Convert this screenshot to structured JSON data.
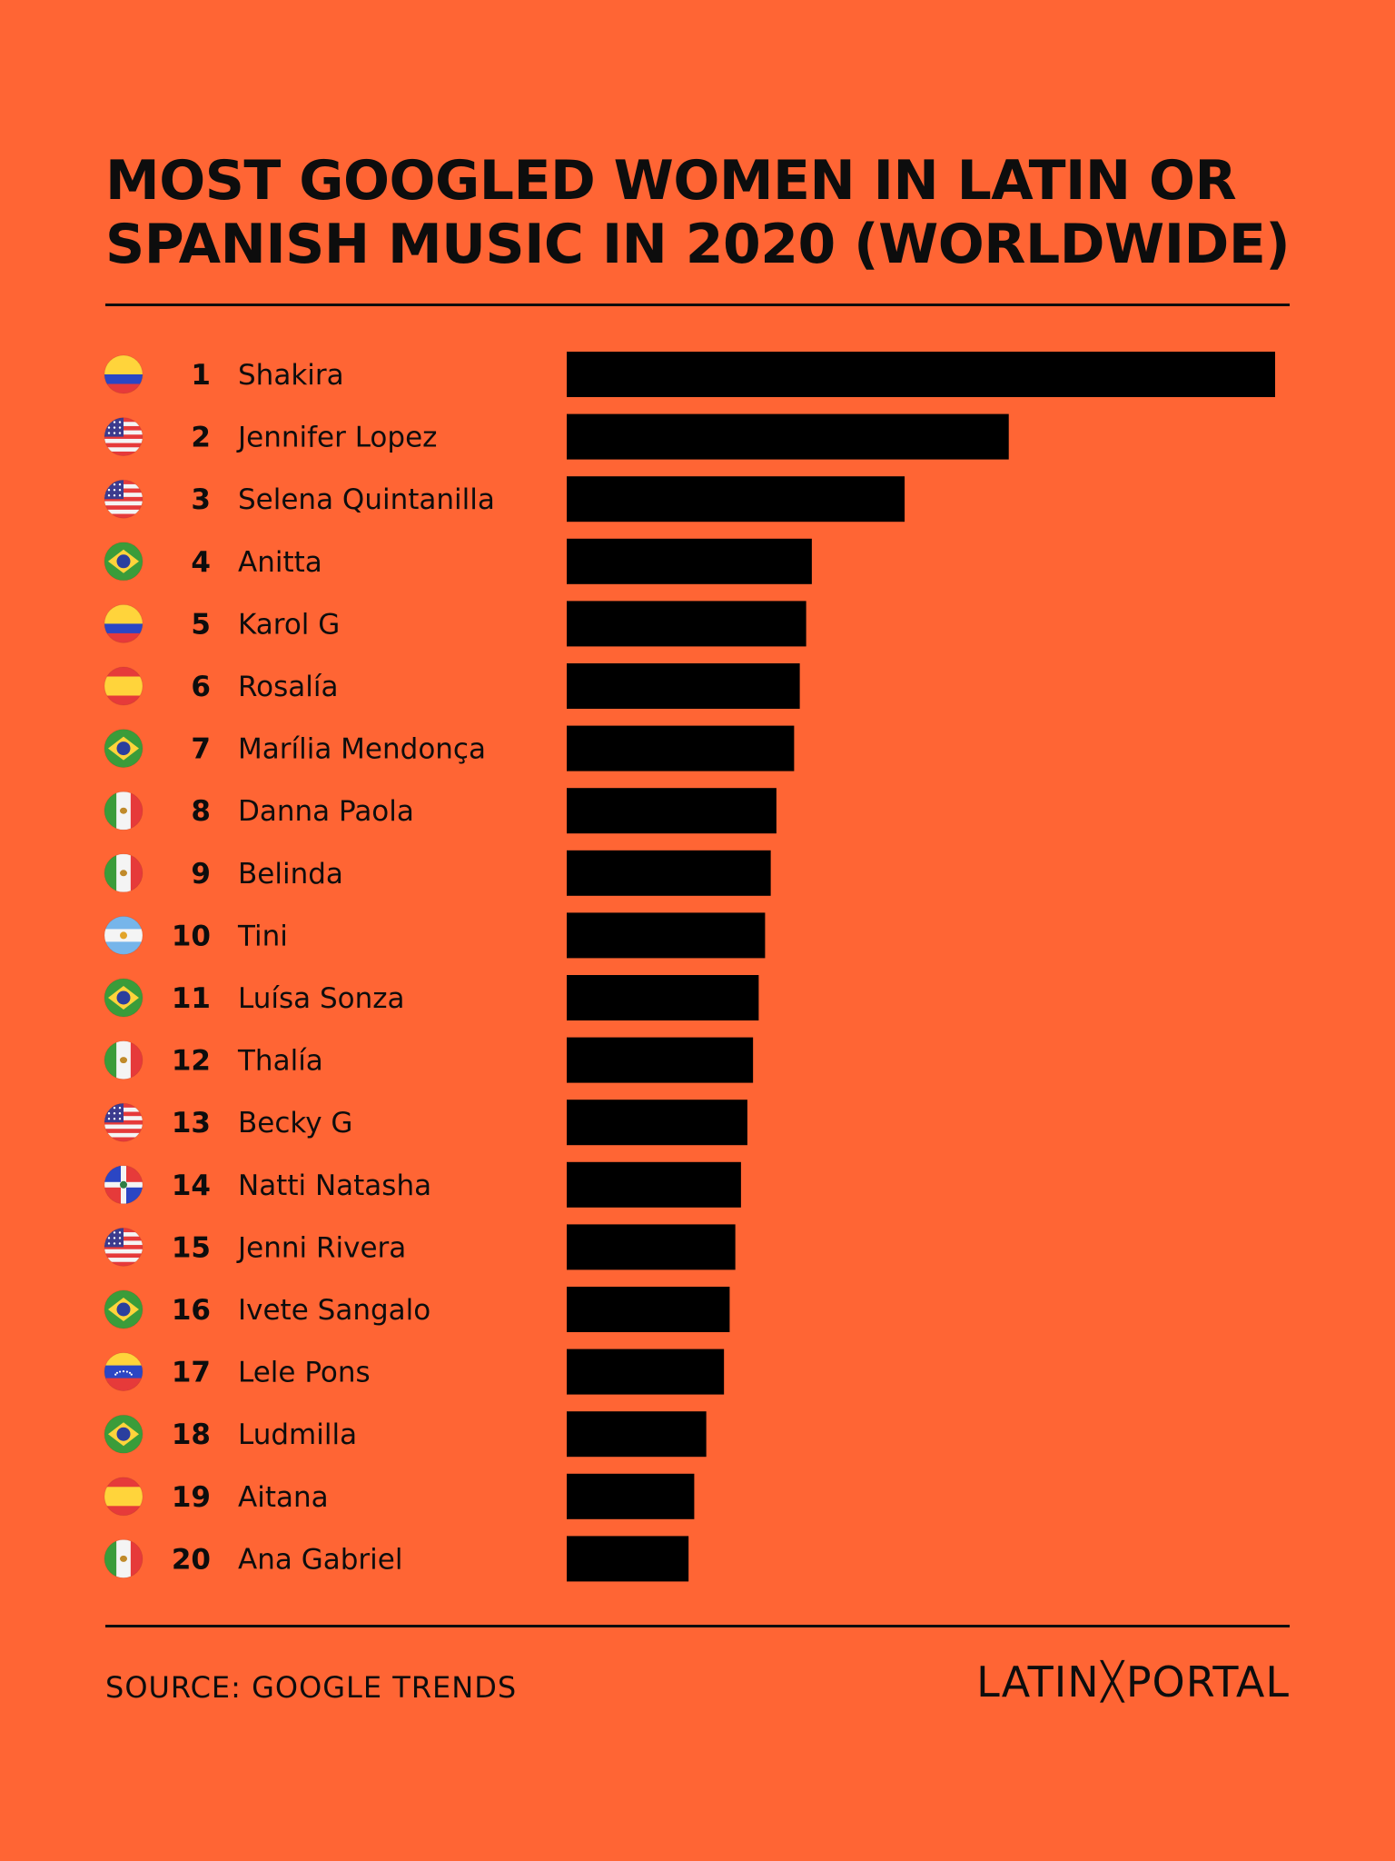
{
  "chart_data": {
    "type": "bar",
    "orientation": "horizontal",
    "title": "MOST GOOGLED WOMEN IN LATIN OR SPANISH MUSIC IN 2020 (WORLDWIDE)",
    "title_lines": [
      "MOST GOOGLED WOMEN IN LATIN OR",
      "SPANISH MUSIC IN 2020 (WORLDWIDE)"
    ],
    "xlabel": "",
    "ylabel": "",
    "axis_visible": false,
    "xlim": [
      0,
      100
    ],
    "grid": false,
    "rows": [
      {
        "rank": "1",
        "name": "Shakira",
        "country": "colombia",
        "value": 100
      },
      {
        "rank": "2",
        "name": "Jennifer Lopez",
        "country": "usa",
        "value": 62.4
      },
      {
        "rank": "3",
        "name": "Selena Quintanilla",
        "country": "usa",
        "value": 47.7
      },
      {
        "rank": "4",
        "name": "Anitta",
        "country": "brazil",
        "value": 34.6
      },
      {
        "rank": "5",
        "name": "Karol G",
        "country": "colombia",
        "value": 33.8
      },
      {
        "rank": "6",
        "name": "Rosalía",
        "country": "spain",
        "value": 32.9
      },
      {
        "rank": "7",
        "name": "Marília Mendonça",
        "country": "brazil",
        "value": 32.1
      },
      {
        "rank": "8",
        "name": "Danna Paola",
        "country": "mexico",
        "value": 29.6
      },
      {
        "rank": "9",
        "name": "Belinda",
        "country": "mexico",
        "value": 28.8
      },
      {
        "rank": "10",
        "name": "Tini",
        "country": "argentina",
        "value": 28.0
      },
      {
        "rank": "11",
        "name": "Luísa Sonza",
        "country": "brazil",
        "value": 27.1
      },
      {
        "rank": "12",
        "name": "Thalía",
        "country": "mexico",
        "value": 26.3
      },
      {
        "rank": "13",
        "name": "Becky G",
        "country": "usa",
        "value": 25.5
      },
      {
        "rank": "14",
        "name": "Natti Natasha",
        "country": "dominican-republic",
        "value": 24.6
      },
      {
        "rank": "15",
        "name": "Jenni Rivera",
        "country": "usa",
        "value": 23.8
      },
      {
        "rank": "16",
        "name": "Ivete Sangalo",
        "country": "brazil",
        "value": 23.0
      },
      {
        "rank": "17",
        "name": "Lele Pons",
        "country": "venezuela",
        "value": 22.2
      },
      {
        "rank": "18",
        "name": "Ludmilla",
        "country": "brazil",
        "value": 19.7
      },
      {
        "rank": "19",
        "name": "Aitana",
        "country": "spain",
        "value": 18.0
      },
      {
        "rank": "20",
        "name": "Ana Gabriel",
        "country": "mexico",
        "value": 17.2
      }
    ],
    "bar_color": "#000000"
  },
  "footer": {
    "source": "SOURCE: GOOGLE TRENDS",
    "logo_left": "LATIN",
    "logo_x": "╳",
    "logo_right": "PORTAL"
  },
  "colors": {
    "background": "#ff6534",
    "text": "#0d0d0d"
  }
}
